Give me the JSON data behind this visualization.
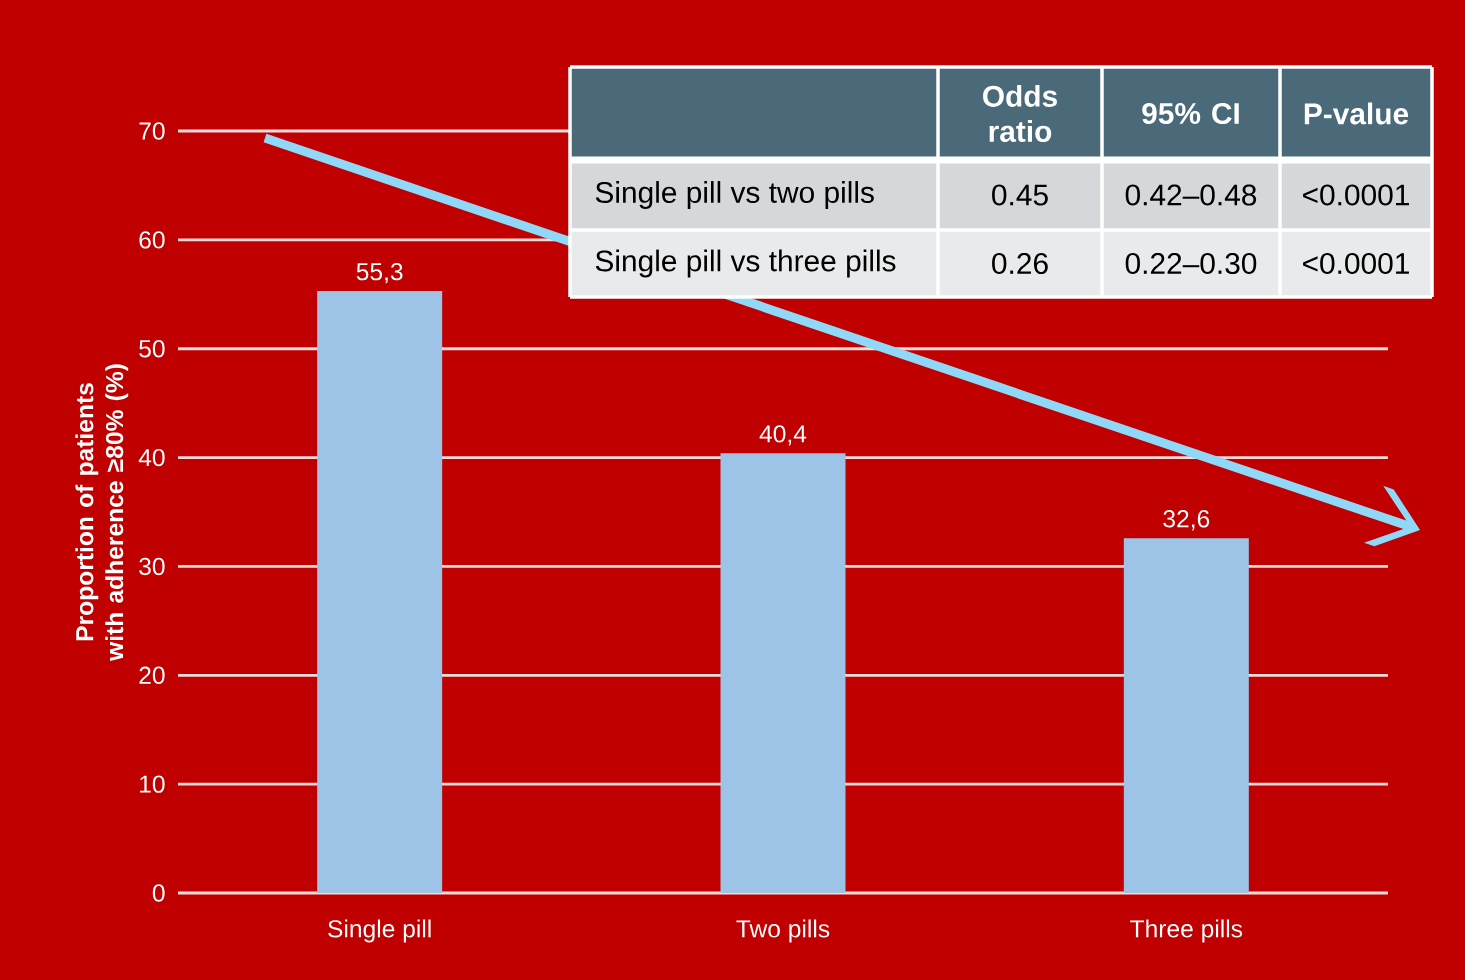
{
  "chart_data": {
    "type": "bar",
    "ylabel": "Proportion of patients with adherence ≥80% (%)",
    "categories": [
      "Single pill",
      "Two pills",
      "Three pills"
    ],
    "values": [
      55.3,
      40.4,
      32.6
    ],
    "value_labels": [
      "55,3",
      "40,4",
      "32,6"
    ],
    "color": "#9dc3e6",
    "ylim": [
      0,
      70
    ],
    "yticks": [
      0,
      10,
      20,
      30,
      40,
      50,
      60,
      70
    ],
    "grid": "y",
    "annotations": [
      "Odds ratio",
      "95% CI",
      "P-value",
      "Single pill vs two pills",
      "0.45",
      "0.42–0.48",
      "<0.0001",
      "Single pill vs three pills",
      "0.26",
      "0.22–0.30",
      "<0.0001"
    ]
  }
}
